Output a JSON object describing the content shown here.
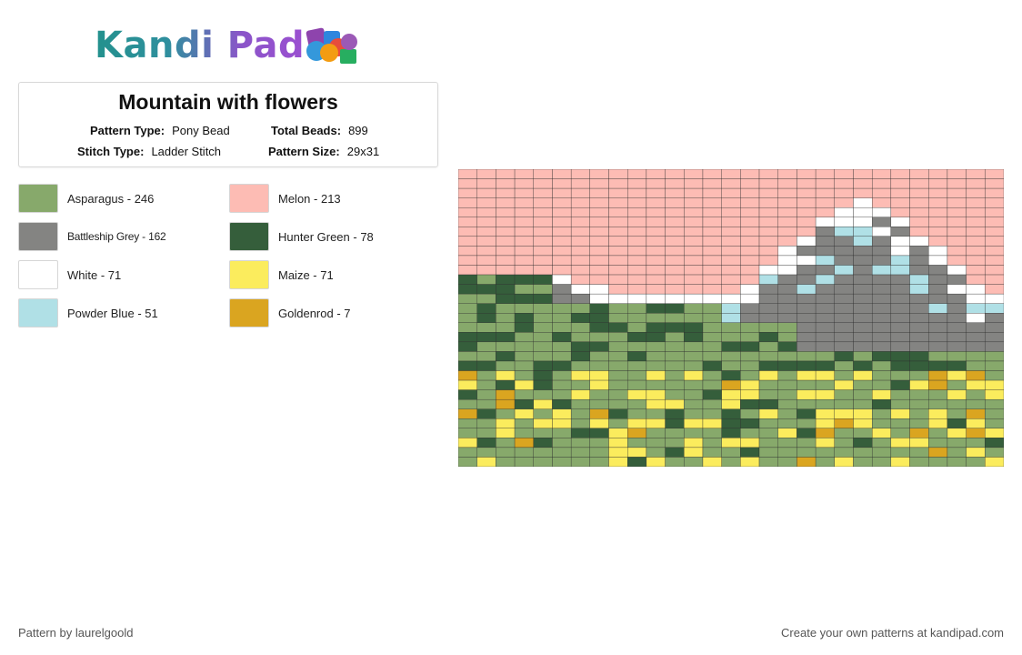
{
  "logo": {
    "text": "Kandi Pad"
  },
  "pattern": {
    "title": "Mountain with flowers",
    "pattern_type_label": "Pattern Type:",
    "pattern_type": "Pony Bead",
    "total_beads_label": "Total Beads:",
    "total_beads": "899",
    "stitch_type_label": "Stitch Type:",
    "stitch_type": "Ladder Stitch",
    "pattern_size_label": "Pattern Size:",
    "pattern_size": "29x31"
  },
  "legend": [
    {
      "label": "Asparagus - 246",
      "color": "#87a96b"
    },
    {
      "label": "Battleship Grey - 162",
      "color": "#848482"
    },
    {
      "label": "White - 71",
      "color": "#ffffff"
    },
    {
      "label": "Powder Blue - 51",
      "color": "#b0e0e6"
    },
    {
      "label": "Melon - 213",
      "color": "#fdbcb4"
    },
    {
      "label": "Hunter Green - 78",
      "color": "#355e3b"
    },
    {
      "label": "Maize - 71",
      "color": "#fbec5d"
    },
    {
      "label": "Goldenrod - 7",
      "color": "#daa520"
    }
  ],
  "footer": {
    "left": "Pattern by laurelgoold",
    "right": "Create your own patterns at kandipad.com"
  }
}
